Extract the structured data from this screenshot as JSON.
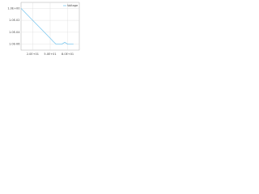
{
  "chart_data": {
    "type": "line",
    "log_y": true,
    "grid": true,
    "x": [
      0,
      10,
      20,
      30,
      40,
      50,
      55,
      60,
      70,
      75,
      80,
      90
    ],
    "series": [
      {
        "name": "Voltage",
        "color": "#7cc8f0",
        "values": [
          1,
          0.1,
          0.01,
          0.001,
          0.0001,
          1e-05,
          3e-06,
          1e-06,
          1e-06,
          2e-06,
          1e-06,
          1e-06
        ]
      }
    ],
    "xlim": [
      0,
      100
    ],
    "xticks": [
      {
        "value": 20,
        "label": "2.0E+01"
      },
      {
        "value": 50,
        "label": "5.0E+01"
      },
      {
        "value": 80,
        "label": "8.0E+01"
      }
    ],
    "ylim": [
      1e-07,
      10
    ],
    "yticks": [
      {
        "value": 1,
        "label": "1.0E+00"
      },
      {
        "value": 0.01,
        "label": "1.0E-02"
      },
      {
        "value": 0.0001,
        "label": "1.0E-04"
      },
      {
        "value": 1e-06,
        "label": "1.0E-06"
      }
    ],
    "legend": "top-right"
  }
}
